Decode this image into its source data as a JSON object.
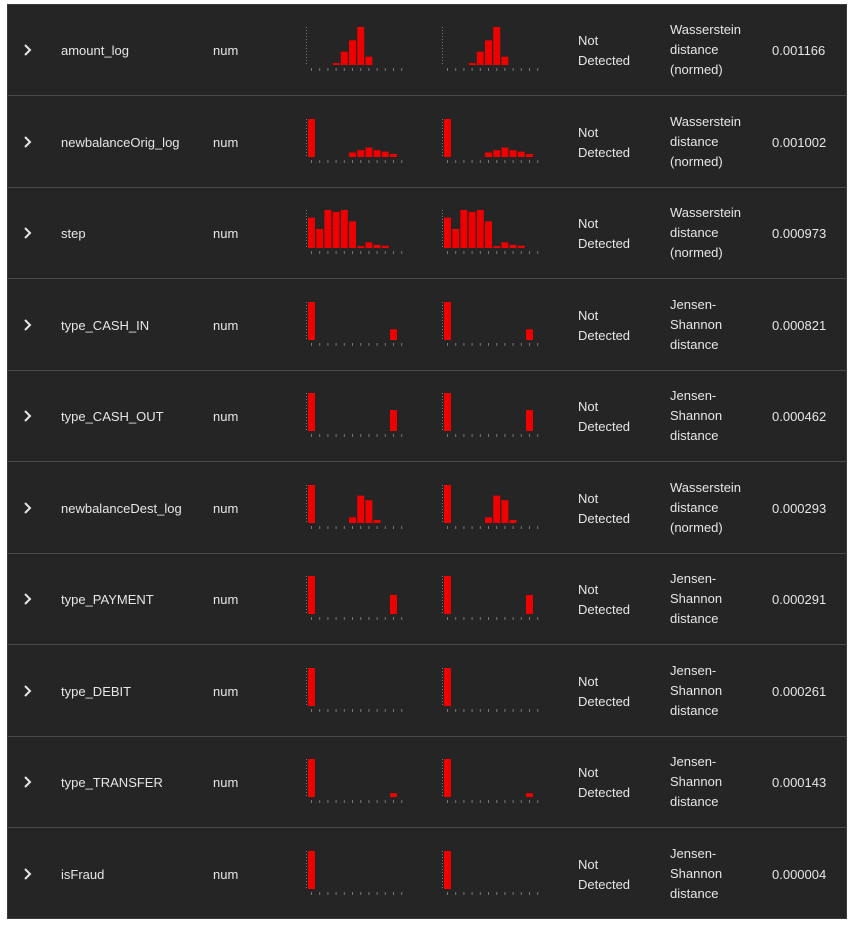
{
  "colors": {
    "bar": "#ee0000",
    "row_bg": "#252525",
    "divider": "#4a4a4a",
    "text": "#e6e6e6",
    "tick": "#777777"
  },
  "icons": {
    "expand": "chevron-right-icon"
  },
  "rows": [
    {
      "feature": "amount_log",
      "type": "num",
      "drift": "Not\nDetected",
      "method": "Wasserstein\ndistance\n(normed)",
      "score": "0.001166",
      "ref_hist": [
        0,
        0,
        0,
        0.05,
        0.35,
        0.65,
        1,
        0.22,
        0,
        0,
        0,
        0
      ],
      "cur_hist": [
        0,
        0,
        0,
        0.05,
        0.35,
        0.65,
        1,
        0.22,
        0,
        0,
        0,
        0
      ]
    },
    {
      "feature": "newbalanceOrig_log",
      "type": "num",
      "drift": "Not\nDetected",
      "method": "Wasserstein\ndistance\n(normed)",
      "score": "0.001002",
      "ref_hist": [
        1,
        0,
        0,
        0,
        0,
        0.12,
        0.18,
        0.25,
        0.18,
        0.14,
        0.08,
        0
      ],
      "cur_hist": [
        1,
        0,
        0,
        0,
        0,
        0.12,
        0.18,
        0.25,
        0.18,
        0.14,
        0.08,
        0
      ]
    },
    {
      "feature": "step",
      "type": "num",
      "drift": "Not\nDetected",
      "method": "Wasserstein\ndistance\n(normed)",
      "score": "0.000973",
      "ref_hist": [
        0.8,
        0.5,
        1,
        0.95,
        1,
        0.7,
        0.05,
        0.15,
        0.08,
        0.06,
        0,
        0
      ],
      "cur_hist": [
        0.8,
        0.5,
        1,
        0.95,
        1,
        0.7,
        0.05,
        0.15,
        0.08,
        0.06,
        0,
        0
      ]
    },
    {
      "feature": "type_CASH_IN",
      "type": "num",
      "drift": "Not\nDetected",
      "method": "Jensen-\nShannon\ndistance",
      "score": "0.000821",
      "ref_hist": [
        1,
        0,
        0,
        0,
        0,
        0,
        0,
        0,
        0,
        0,
        0.28,
        0
      ],
      "cur_hist": [
        1,
        0,
        0,
        0,
        0,
        0,
        0,
        0,
        0,
        0,
        0.28,
        0
      ]
    },
    {
      "feature": "type_CASH_OUT",
      "type": "num",
      "drift": "Not\nDetected",
      "method": "Jensen-\nShannon\ndistance",
      "score": "0.000462",
      "ref_hist": [
        1,
        0,
        0,
        0,
        0,
        0,
        0,
        0,
        0,
        0,
        0.55,
        0
      ],
      "cur_hist": [
        1,
        0,
        0,
        0,
        0,
        0,
        0,
        0,
        0,
        0,
        0.55,
        0
      ]
    },
    {
      "feature": "newbalanceDest_log",
      "type": "num",
      "drift": "Not\nDetected",
      "method": "Wasserstein\ndistance\n(normed)",
      "score": "0.000293",
      "ref_hist": [
        1,
        0,
        0,
        0,
        0,
        0.15,
        0.72,
        0.6,
        0.08,
        0,
        0,
        0
      ],
      "cur_hist": [
        1,
        0,
        0,
        0,
        0,
        0.15,
        0.72,
        0.6,
        0.08,
        0,
        0,
        0
      ]
    },
    {
      "feature": "type_PAYMENT",
      "type": "num",
      "drift": "Not\nDetected",
      "method": "Jensen-\nShannon\ndistance",
      "score": "0.000291",
      "ref_hist": [
        1,
        0,
        0,
        0,
        0,
        0,
        0,
        0,
        0,
        0,
        0.5,
        0
      ],
      "cur_hist": [
        1,
        0,
        0,
        0,
        0,
        0,
        0,
        0,
        0,
        0,
        0.5,
        0
      ]
    },
    {
      "feature": "type_DEBIT",
      "type": "num",
      "drift": "Not\nDetected",
      "method": "Jensen-\nShannon\ndistance",
      "score": "0.000261",
      "ref_hist": [
        1,
        0,
        0,
        0,
        0,
        0,
        0,
        0,
        0,
        0,
        0,
        0
      ],
      "cur_hist": [
        1,
        0,
        0,
        0,
        0,
        0,
        0,
        0,
        0,
        0,
        0,
        0
      ]
    },
    {
      "feature": "type_TRANSFER",
      "type": "num",
      "drift": "Not\nDetected",
      "method": "Jensen-\nShannon\ndistance",
      "score": "0.000143",
      "ref_hist": [
        1,
        0,
        0,
        0,
        0,
        0,
        0,
        0,
        0,
        0,
        0.1,
        0
      ],
      "cur_hist": [
        1,
        0,
        0,
        0,
        0,
        0,
        0,
        0,
        0,
        0,
        0.1,
        0
      ]
    },
    {
      "feature": "isFraud",
      "type": "num",
      "drift": "Not\nDetected",
      "method": "Jensen-\nShannon\ndistance",
      "score": "0.000004",
      "ref_hist": [
        1,
        0,
        0,
        0,
        0,
        0,
        0,
        0,
        0,
        0,
        0,
        0
      ],
      "cur_hist": [
        1,
        0,
        0,
        0,
        0,
        0,
        0,
        0,
        0,
        0,
        0,
        0
      ]
    }
  ]
}
